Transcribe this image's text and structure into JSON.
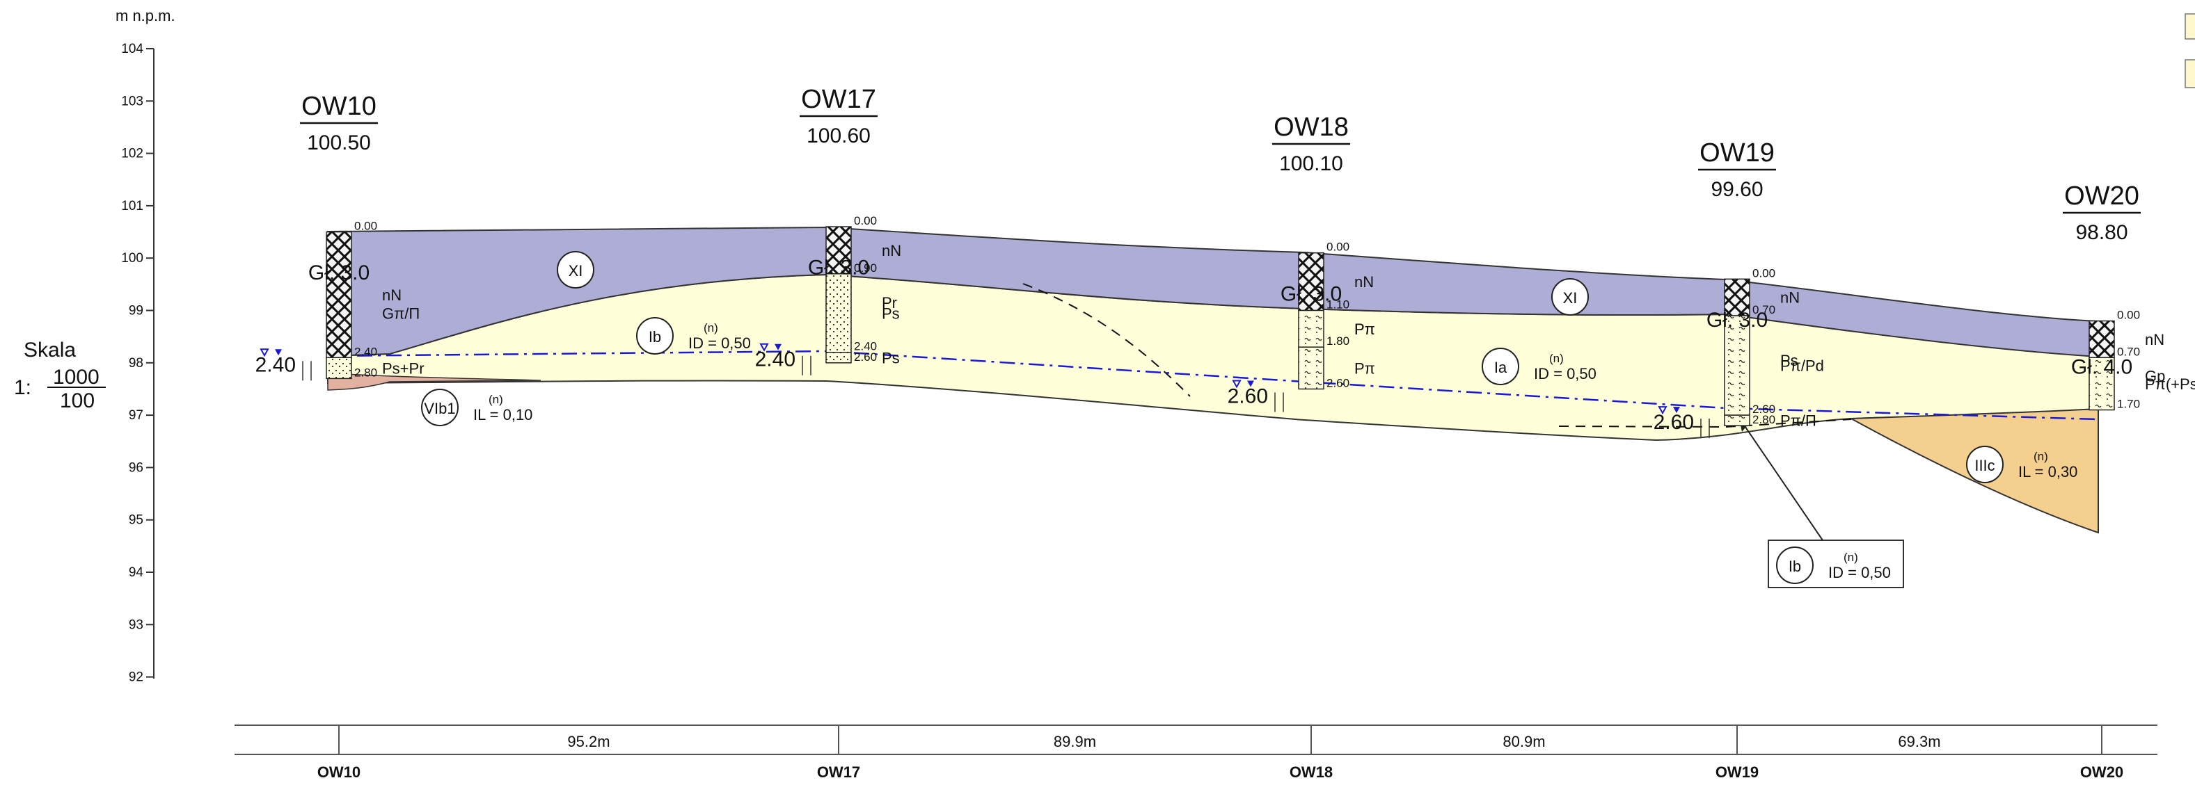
{
  "axis": {
    "unit": "m n.p.m.",
    "ticks": [
      "104",
      "103",
      "102",
      "101",
      "100",
      "99",
      "98",
      "97",
      "96",
      "95",
      "94",
      "93",
      "92"
    ]
  },
  "scale": {
    "title": "Skala",
    "prefix": "1:",
    "numerator": "1000",
    "denominator": "100"
  },
  "boreholes": [
    {
      "name": "OW10",
      "elevation": "100.50",
      "depth": "Gł. 3.0",
      "water": "2.40",
      "depth_marks": [
        "0.00",
        "2.40",
        "2.80"
      ],
      "layers": [
        "nN",
        "Ps+Pr",
        "Gπ/Π"
      ]
    },
    {
      "name": "OW17",
      "elevation": "100.60",
      "depth": "Gł. 3.0",
      "water": "2.40",
      "depth_marks": [
        "0.00",
        "0.90",
        "2.40",
        "2.60"
      ],
      "layers": [
        "nN",
        "Ps",
        "Ps",
        "Pr"
      ]
    },
    {
      "name": "OW18",
      "elevation": "100.10",
      "depth": "Gł. 3.0",
      "water": "2.60",
      "depth_marks": [
        "0.00",
        "1.10",
        "1.80",
        "2.60"
      ],
      "layers": [
        "nN",
        "Pπ",
        "Pπ",
        "Pπ"
      ]
    },
    {
      "name": "OW19",
      "elevation": "99.60",
      "depth": "Gł. 3.0",
      "water": "2.60",
      "depth_marks": [
        "0.00",
        "0.70",
        "2.60",
        "2.80"
      ],
      "layers": [
        "nN",
        "Pπ/Pd",
        "Pπ/Π",
        "Ps"
      ]
    },
    {
      "name": "OW20",
      "elevation": "98.80",
      "depth": "Gł. 4.0",
      "depth_marks": [
        "0.00",
        "0.70",
        "1.70"
      ],
      "layers": [
        "nN",
        "Pπ(+Ps",
        "Gp"
      ]
    }
  ],
  "zones": [
    {
      "id": "XI",
      "param": ""
    },
    {
      "id": "Ib",
      "param": "ID = 0,50",
      "sup": "(n)"
    },
    {
      "id": "VIb1",
      "param": "IL = 0,10",
      "sup": "(n)"
    },
    {
      "id": "XI",
      "param": ""
    },
    {
      "id": "Ia",
      "param": "ID = 0,50",
      "sup": "(n)"
    },
    {
      "id": "IIIc",
      "param": "IL = 0,30",
      "sup": "(n)"
    },
    {
      "id": "Ib",
      "param": "ID = 0,50",
      "sup": "(n)"
    }
  ],
  "distances": [
    "95.2m",
    "89.9m",
    "80.9m",
    "69.3m"
  ],
  "bottom_labels": [
    "OW10",
    "OW17",
    "OW18",
    "OW19",
    "OW20"
  ],
  "colors": {
    "fill_layer": "#adadd6",
    "sand_layer": "#ffffd9",
    "clay_layer": "#f4cf8e",
    "peat_layer": "#e3b1a0",
    "water_line": "#1a1ad6",
    "legend_fill": "#fff8cc"
  }
}
